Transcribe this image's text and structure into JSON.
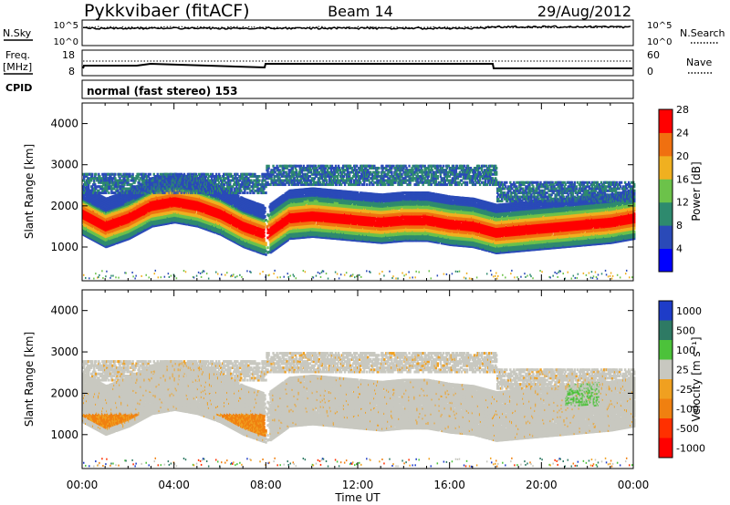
{
  "header": {
    "station": "Pykkvibaer (fitACF)",
    "beam": "Beam 14",
    "date": "29/Aug/2012"
  },
  "noise_panel": {
    "left_label": "N.Sky",
    "right_label": "N.Search",
    "left_ticks": [
      "10^5",
      "10^0"
    ],
    "right_ticks": [
      "10^5",
      "10^0"
    ]
  },
  "freq_panel": {
    "left_label_1": "Freq.",
    "left_label_2": "[MHz]",
    "right_label": "Nave",
    "left_ticks": [
      "18",
      "8"
    ],
    "right_ticks": [
      "60",
      "0"
    ]
  },
  "cpid_panel": {
    "label": "CPID",
    "text": "normal (fast stereo) 153"
  },
  "chart_data": [
    {
      "type": "heatmap",
      "name": "power",
      "ylabel": "Slant Range [km]",
      "ylim": [
        180,
        4500
      ],
      "yticks": [
        1000,
        2000,
        3000,
        4000
      ],
      "xlim": [
        0,
        24
      ],
      "colorbar_label": "Power [dB]",
      "colorbar_ticks": [
        "4",
        "8",
        "12",
        "16",
        "20",
        "24",
        "28"
      ],
      "colorbar_colors": [
        "#0000ff",
        "#2a4ab8",
        "#2e8a6e",
        "#6cc24a",
        "#f0b020",
        "#f07010",
        "#ff0000"
      ],
      "bands": [
        {
          "x": [
            0,
            1,
            2,
            3,
            4,
            5,
            6,
            7,
            8,
            9,
            10,
            11,
            12,
            13,
            14,
            15,
            16,
            17,
            18,
            19,
            20,
            21,
            22,
            23,
            24
          ],
          "y": [
            1800,
            1500,
            1700,
            2000,
            2100,
            2000,
            1800,
            1500,
            1300,
            1700,
            1750,
            1700,
            1650,
            1600,
            1650,
            1650,
            1550,
            1500,
            1350,
            1400,
            1450,
            1500,
            1550,
            1600,
            1700
          ]
        }
      ]
    },
    {
      "type": "heatmap",
      "name": "velocity",
      "ylabel": "Slant Range [km]",
      "ylim": [
        180,
        4500
      ],
      "yticks": [
        1000,
        2000,
        3000,
        4000
      ],
      "xlim": [
        0,
        24
      ],
      "xlabel": "Time UT",
      "xticks": [
        "00:00",
        "04:00",
        "08:00",
        "12:00",
        "16:00",
        "20:00",
        "00:00"
      ],
      "colorbar_label": "Velocity [m s⁻¹]",
      "colorbar_ticks": [
        "1000",
        "500",
        "100",
        "25",
        "-25",
        "-100",
        "-500",
        "-1000"
      ],
      "colorbar_colors": [
        "#1e3cc8",
        "#2e7a64",
        "#4cc23a",
        "#c8c8c0",
        "#f0a020",
        "#f08010",
        "#ff3000",
        "#ff0000"
      ]
    }
  ]
}
